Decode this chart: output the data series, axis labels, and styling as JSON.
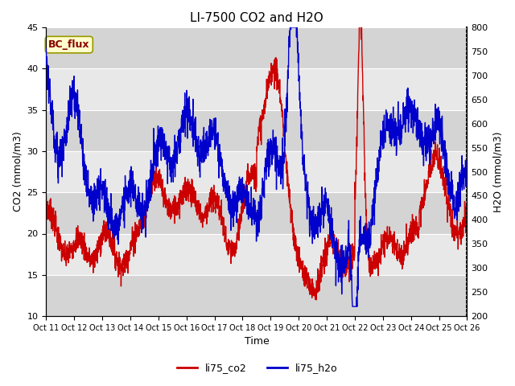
{
  "title": "LI-7500 CO2 and H2O",
  "xlabel": "Time",
  "ylabel_left": "CO2 (mmol/m3)",
  "ylabel_right": "H2O (mmol/m3)",
  "ylim_left": [
    10,
    45
  ],
  "ylim_right": [
    200,
    800
  ],
  "yticks_left": [
    10,
    15,
    20,
    25,
    30,
    35,
    40,
    45
  ],
  "yticks_right": [
    200,
    250,
    300,
    350,
    400,
    450,
    500,
    550,
    600,
    650,
    700,
    750,
    800
  ],
  "xtick_labels": [
    "Oct 11",
    "Oct 12",
    "Oct 13",
    "Oct 14",
    "Oct 15",
    "Oct 16",
    "Oct 17",
    "Oct 18",
    "Oct 19",
    "Oct 20",
    "Oct 21",
    "Oct 22",
    "Oct 23",
    "Oct 24",
    "Oct 25",
    "Oct 26"
  ],
  "annotation_text": "BC_flux",
  "annotation_facecolor": "#ffffcc",
  "annotation_edgecolor": "#999900",
  "annotation_textcolor": "#880000",
  "color_co2": "#cc0000",
  "color_h2o": "#0000cc",
  "label_co2": "li75_co2",
  "label_h2o": "li75_h2o",
  "bg_color": "#e8e8e8",
  "band_color": "#d0d0d0",
  "linewidth": 1.0,
  "figsize": [
    6.4,
    4.8
  ],
  "dpi": 100
}
